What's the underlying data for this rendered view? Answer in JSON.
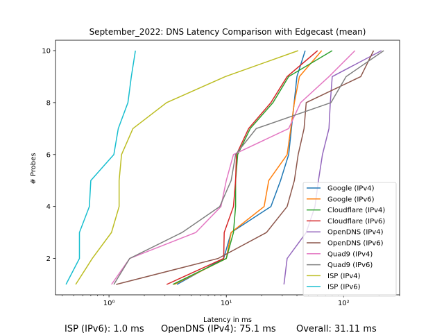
{
  "chart_data": {
    "type": "line",
    "title": "September_2022: DNS Latency Comparison with Edgecast (mean)",
    "xlabel": "Latency in ms",
    "ylabel": "# Probes",
    "xscale": "log",
    "xlim": [
      0.35,
      300
    ],
    "ylim": [
      0.6,
      10.4
    ],
    "x_ticks": [
      {
        "value": 1,
        "label": "10⁰"
      },
      {
        "value": 10,
        "label": "10¹"
      },
      {
        "value": 100,
        "label": "10²"
      }
    ],
    "y_ticks": [
      2,
      4,
      6,
      8,
      10
    ],
    "legend_position": "lower-right",
    "grid": false,
    "series": [
      {
        "name": "Google (IPv4)",
        "color": "#1f77b4",
        "x": [
          3.8,
          9.5,
          11,
          24,
          29,
          34,
          40,
          47
        ],
        "y": [
          1,
          2,
          3,
          4,
          5,
          6,
          9,
          10
        ]
      },
      {
        "name": "Google (IPv6)",
        "color": "#ff7f0e",
        "x": [
          3.6,
          10,
          11,
          21,
          23,
          33,
          38,
          42,
          65
        ],
        "y": [
          1,
          2,
          3,
          4,
          5,
          6,
          8,
          9,
          10
        ]
      },
      {
        "name": "Cloudflare (IPv4)",
        "color": "#2ca02c",
        "x": [
          3.5,
          10,
          11.5,
          12,
          12,
          12.5,
          16,
          25,
          34,
          80
        ],
        "y": [
          1,
          2,
          3,
          4,
          5,
          6,
          7,
          8,
          9,
          10
        ]
      },
      {
        "name": "Cloudflare (IPv6)",
        "color": "#d62728",
        "x": [
          3.1,
          9.5,
          9.6,
          11.5,
          12,
          12.2,
          15.5,
          24,
          33,
          60
        ],
        "y": [
          1,
          2,
          3,
          4,
          5,
          6,
          7,
          8,
          9,
          10
        ]
      },
      {
        "name": "OpenDNS (IPv4)",
        "color": "#9467bd",
        "x": [
          31,
          33,
          48,
          57,
          61,
          66,
          75,
          77,
          80,
          210
        ],
        "y": [
          1,
          2,
          3,
          4,
          5,
          6,
          7,
          8,
          9,
          10
        ]
      },
      {
        "name": "OpenDNS (IPv6)",
        "color": "#8c564b",
        "x": [
          1.15,
          8.5,
          22,
          33,
          38,
          41,
          46,
          48,
          140,
          180
        ],
        "y": [
          1,
          2,
          3,
          4,
          5,
          6,
          7,
          8,
          9,
          10
        ]
      },
      {
        "name": "Quad9 (IPv4)",
        "color": "#e377c2",
        "x": [
          1.05,
          1.5,
          5.5,
          9,
          10,
          11.5,
          34,
          43,
          75,
          125
        ],
        "y": [
          1,
          2,
          3,
          4,
          5,
          6,
          7,
          8,
          9,
          10
        ]
      },
      {
        "name": "Quad9 (IPv6)",
        "color": "#7f7f7f",
        "x": [
          1.1,
          1.5,
          4.2,
          8.8,
          11,
          12,
          18,
          78,
          105,
          220
        ],
        "y": [
          1,
          2,
          3,
          4,
          5,
          6,
          7,
          8,
          9,
          10
        ]
      },
      {
        "name": "ISP (IPv4)",
        "color": "#bcbd22",
        "x": [
          0.52,
          0.72,
          1.05,
          1.22,
          1.22,
          1.28,
          1.6,
          3.1,
          9.8,
          41
        ],
        "y": [
          1,
          2,
          3,
          4,
          5,
          6,
          7,
          8,
          9,
          10
        ]
      },
      {
        "name": "ISP (IPv6)",
        "color": "#17becf",
        "x": [
          0.43,
          0.56,
          0.56,
          0.68,
          0.7,
          1.1,
          1.2,
          1.45,
          1.55,
          1.68
        ],
        "y": [
          1,
          2,
          3,
          4,
          5,
          6,
          7,
          8,
          9,
          10
        ]
      }
    ]
  },
  "footer": {
    "isp_text": "ISP (IPv6): 1.0 ms",
    "opendns_text": "OpenDNS (IPv4): 75.1 ms",
    "overall_text": "Overall: 31.11 ms"
  }
}
